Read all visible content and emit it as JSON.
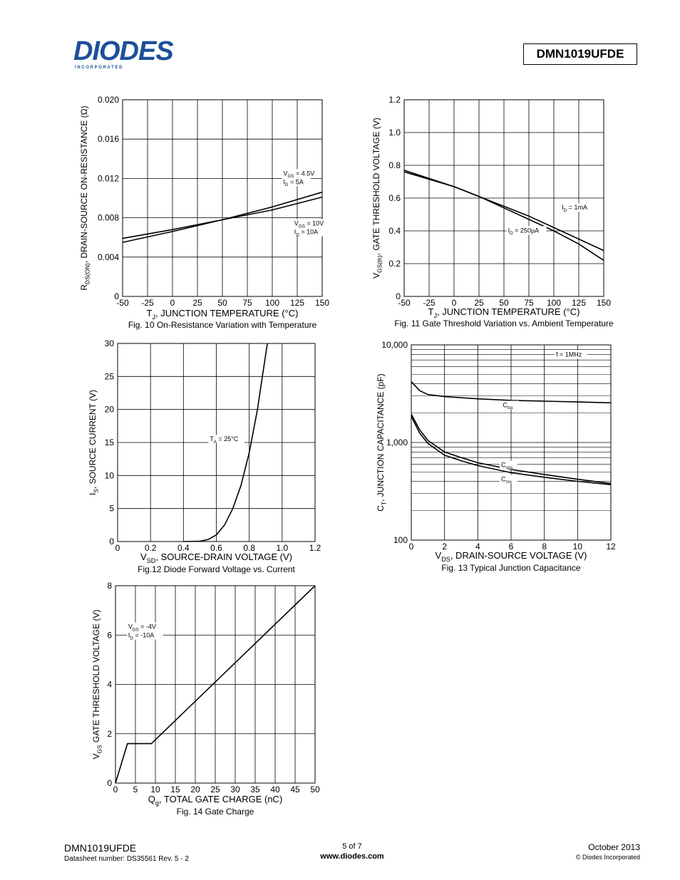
{
  "header": {
    "logo_text": "DIODES",
    "logo_sub": "I N C O R P O R A T E D",
    "part_number": "DMN1019UFDE"
  },
  "footer": {
    "part_number": "DMN1019UFDE",
    "datasheet": "Datasheet number: DS35561 Rev. 5 - 2",
    "page": "5 of 7",
    "url": "www.diodes.com",
    "date": "October 2013",
    "copyright": "© Diodes Incorporated"
  },
  "colors": {
    "accent": "#1d4f9a",
    "ink": "#000000"
  },
  "chart_data": [
    {
      "id": "fig10",
      "type": "line",
      "caption": "Fig. 10 On-Resistance Variation with Temperature",
      "xlabel_main": "T",
      "xlabel_sub": "J",
      "xlabel_rest": ", JUNCTION TEMPERATURE (°C)",
      "ylabel_main": "R",
      "ylabel_sub": "DS(ON)",
      "ylabel_rest": ", DRAIN-SOURCE ON-RESISTANCE (Ω)",
      "xlim": [
        -50,
        150
      ],
      "ylim": [
        0,
        0.02
      ],
      "xticks": [
        -50,
        -25,
        0,
        25,
        50,
        75,
        100,
        125,
        150
      ],
      "xtick_labels": [
        "-50",
        "-25",
        "0",
        "25",
        "50",
        "75",
        "100",
        "125",
        "150"
      ],
      "yticks": [
        0,
        0.004,
        0.008,
        0.012,
        0.016,
        0.02
      ],
      "ytick_labels": [
        "0",
        "0.004",
        "0.008",
        "0.012",
        "0.016",
        "0.020"
      ],
      "series": [
        {
          "x": [
            -50,
            0,
            50,
            100,
            150
          ],
          "y": [
            0.0055,
            0.0066,
            0.0078,
            0.0091,
            0.0106
          ]
        },
        {
          "x": [
            -50,
            0,
            50,
            100,
            150
          ],
          "y": [
            0.0059,
            0.0068,
            0.0078,
            0.0088,
            0.0101
          ]
        }
      ],
      "annotations": [
        {
          "lines": [
            [
              "V",
              "GS",
              " = 4.5V"
            ],
            [
              "I",
              "D",
              " = 5A"
            ]
          ],
          "x": 111,
          "y": 0.0123
        },
        {
          "lines": [
            [
              "V",
              "GS",
              " = 10V"
            ],
            [
              "I",
              "D",
              " = 10A"
            ]
          ],
          "x": 122,
          "y": 0.0072
        }
      ]
    },
    {
      "id": "fig11",
      "type": "line",
      "caption": "Fig. 11 Gate Threshold Variation vs. Ambient Temperature",
      "xlabel_main": "T",
      "xlabel_sub": "J",
      "xlabel_rest": ", JUNCTION TEMPERATURE (°C)",
      "ylabel_main": "V",
      "ylabel_sub": "GS(th)",
      "ylabel_rest": ", GATE THRESHOLD VOLTAGE (V)",
      "xlim": [
        -50,
        150
      ],
      "ylim": [
        0,
        1.2
      ],
      "xticks": [
        -50,
        -25,
        0,
        25,
        50,
        75,
        100,
        125,
        150
      ],
      "xtick_labels": [
        "-50",
        "-25",
        "0",
        "25",
        "50",
        "75",
        "100",
        "125",
        "150"
      ],
      "yticks": [
        0,
        0.2,
        0.4,
        0.6,
        0.8,
        1.0,
        1.2
      ],
      "ytick_labels": [
        "0",
        "0.2",
        "0.4",
        "0.6",
        "0.8",
        "1.0",
        "1.2"
      ],
      "series": [
        {
          "x": [
            -50,
            0,
            25,
            50,
            75,
            100,
            125,
            150
          ],
          "y": [
            0.76,
            0.67,
            0.61,
            0.55,
            0.49,
            0.42,
            0.35,
            0.28
          ]
        },
        {
          "x": [
            -50,
            0,
            25,
            50,
            75,
            100,
            125,
            150
          ],
          "y": [
            0.77,
            0.67,
            0.61,
            0.54,
            0.47,
            0.4,
            0.32,
            0.22
          ]
        }
      ],
      "annotations": [
        {
          "lines": [
            [
              "I",
              "D",
              " = 1mA"
            ]
          ],
          "x": 108,
          "y": 0.53
        },
        {
          "lines": [
            [
              "I",
              "D",
              " = 250µA"
            ]
          ],
          "x": 54,
          "y": 0.39
        }
      ]
    },
    {
      "id": "fig12",
      "type": "line",
      "caption": "Fig.12 Diode Forward Voltage vs. Current",
      "xlabel_main": "V",
      "xlabel_sub": "SD",
      "xlabel_rest": ", SOURCE-DRAIN VOLTAGE (V)",
      "ylabel_main": "I",
      "ylabel_sub": "S",
      "ylabel_rest": ", SOURCE CURRENT (V)",
      "xlim": [
        0,
        1.2
      ],
      "ylim": [
        0,
        30
      ],
      "xticks": [
        0,
        0.2,
        0.4,
        0.6,
        0.8,
        1.0,
        1.2
      ],
      "xtick_labels": [
        "0",
        "0.2",
        "0.4",
        "0.6",
        "0.8",
        "1.0",
        "1.2"
      ],
      "yticks": [
        0,
        5,
        10,
        15,
        20,
        25,
        30
      ],
      "ytick_labels": [
        "0",
        "5",
        "10",
        "15",
        "20",
        "25",
        "30"
      ],
      "series": [
        {
          "x": [
            0.4,
            0.5,
            0.55,
            0.6,
            0.65,
            0.7,
            0.75,
            0.8,
            0.85,
            0.88,
            0.91
          ],
          "y": [
            0,
            0.05,
            0.3,
            1,
            2.5,
            5,
            8.5,
            13.5,
            20,
            25,
            30
          ]
        }
      ],
      "annotations": [
        {
          "lines": [
            [
              "T",
              "A",
              " = 25°C"
            ]
          ],
          "x": 0.56,
          "y": 15.2
        }
      ]
    },
    {
      "id": "fig13",
      "type": "line",
      "caption": "Fig. 13 Typical Junction Capacitance",
      "xlabel_main": "V",
      "xlabel_sub": "DS",
      "xlabel_rest": ", DRAIN-SOURCE VOLTAGE (V)",
      "ylabel_main": "C",
      "ylabel_sub": "T",
      "ylabel_rest": ", JUNCTION CAPACITANCE (pF)",
      "yscale": "log",
      "xlim": [
        0,
        12
      ],
      "ylim": [
        100,
        10000
      ],
      "xticks": [
        0,
        2,
        4,
        6,
        8,
        10,
        12
      ],
      "xtick_labels": [
        "0",
        "2",
        "4",
        "6",
        "8",
        "10",
        "12"
      ],
      "yticks": [
        100,
        1000,
        10000
      ],
      "ytick_labels": [
        "100",
        "1,000",
        "10,000"
      ],
      "series": [
        {
          "name": "C_iss",
          "x": [
            0,
            0.5,
            1,
            2,
            4,
            6,
            8,
            10,
            12
          ],
          "y": [
            4200,
            3400,
            3100,
            2950,
            2800,
            2700,
            2650,
            2600,
            2550
          ]
        },
        {
          "name": "C_oss",
          "x": [
            0,
            0.5,
            1,
            2,
            3,
            4,
            6,
            8,
            10,
            12
          ],
          "y": [
            1950,
            1350,
            1050,
            800,
            700,
            620,
            530,
            470,
            420,
            380
          ]
        },
        {
          "name": "C_rss",
          "x": [
            0,
            0.5,
            1,
            2,
            3,
            4,
            6,
            8,
            10,
            12
          ],
          "y": [
            1850,
            1250,
            980,
            740,
            650,
            580,
            490,
            440,
            400,
            370
          ]
        }
      ],
      "annotations": [
        {
          "lines": [
            [
              "f = 1MHz",
              "",
              ""
            ]
          ],
          "x": 8.7,
          "y": 7600
        },
        {
          "lines": [
            [
              "C",
              "iss",
              ""
            ]
          ],
          "x": 5.5,
          "y": 2300
        },
        {
          "lines": [
            [
              "C",
              "oss",
              ""
            ]
          ],
          "x": 5.4,
          "y": 560
        },
        {
          "lines": [
            [
              "C",
              "rss",
              ""
            ]
          ],
          "x": 5.4,
          "y": 400
        }
      ]
    },
    {
      "id": "fig14",
      "type": "line",
      "caption": "Fig. 14 Gate Charge",
      "xlabel_main": "Q",
      "xlabel_sub": "g",
      "xlabel_rest": ", TOTAL GATE CHARGE  (nC)",
      "ylabel_main": "V",
      "ylabel_sub": "GS",
      "ylabel_rest": " GATE THRESHOLD VOLTAGE (V)",
      "xlim": [
        0,
        50
      ],
      "ylim": [
        0,
        8
      ],
      "xticks": [
        0,
        5,
        10,
        15,
        20,
        25,
        30,
        35,
        40,
        45,
        50
      ],
      "xtick_labels": [
        "0",
        "5",
        "10",
        "15",
        "20",
        "25",
        "30",
        "35",
        "40",
        "45",
        "50"
      ],
      "yticks": [
        0,
        2,
        4,
        6,
        8
      ],
      "ytick_labels": [
        "0",
        "2",
        "4",
        "6",
        "8"
      ],
      "series": [
        {
          "x": [
            0,
            3,
            9,
            50
          ],
          "y": [
            0,
            1.6,
            1.6,
            8
          ]
        }
      ],
      "annotations": [
        {
          "lines": [
            [
              "V",
              "DS",
              " = -4V"
            ],
            [
              "I",
              "D",
              " = -10A"
            ]
          ],
          "x": 3.2,
          "y": 6.25
        }
      ]
    }
  ]
}
